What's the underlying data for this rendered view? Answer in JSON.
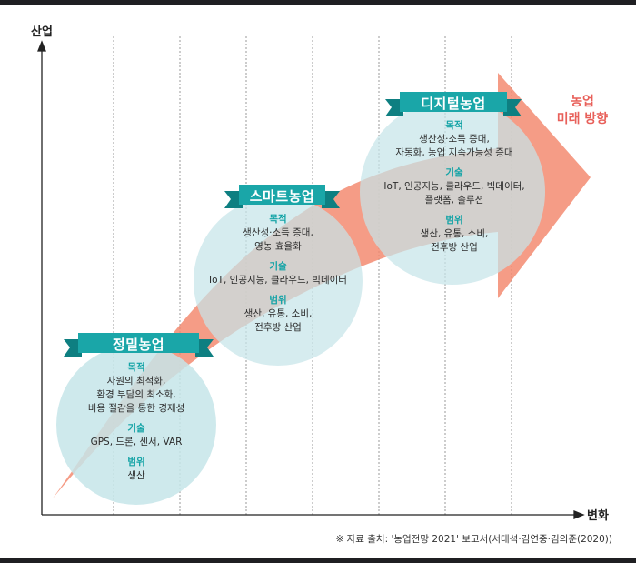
{
  "axes": {
    "y_label": "산업",
    "x_label": "변화"
  },
  "future_label": [
    "농업",
    "미래 방향"
  ],
  "stages": [
    {
      "title": "정밀농업",
      "sections": [
        {
          "heading": "목적",
          "text": "자원의 최적화,\n환경 부담의 최소화,\n비용 절감을 통한 경제성"
        },
        {
          "heading": "기술",
          "text": "GPS, 드론, 센서, VAR"
        },
        {
          "heading": "범위",
          "text": "생산"
        }
      ]
    },
    {
      "title": "스마트농업",
      "sections": [
        {
          "heading": "목적",
          "text": "생산성·소득 증대,\n영농 효율화"
        },
        {
          "heading": "기술",
          "text": "IoT, 인공지능, 클라우드, 빅데이터"
        },
        {
          "heading": "범위",
          "text": "생산, 유통, 소비,\n전후방 산업"
        }
      ]
    },
    {
      "title": "디지털농업",
      "sections": [
        {
          "heading": "목적",
          "text": "생산성·소득 증대,\n자동화, 농업 지속가능성 증대"
        },
        {
          "heading": "기술",
          "text": "IoT, 인공지능, 클라우드, 빅데이터,\n플랫폼, 솔루션"
        },
        {
          "heading": "범위",
          "text": "생산, 유통, 소비,\n전후방 산업"
        }
      ]
    }
  ],
  "source": "※ 자료 출처: '농업전망 2021' 보고서(서대석·김연중·김의준(2020))",
  "colors": {
    "arrow": "#f08a6e",
    "circle": "#c9e7ea",
    "ribbon": "#1aa6a8",
    "ribbon_dark": "#0e7f81",
    "heading": "#13a3a6",
    "future": "#e8605a"
  }
}
